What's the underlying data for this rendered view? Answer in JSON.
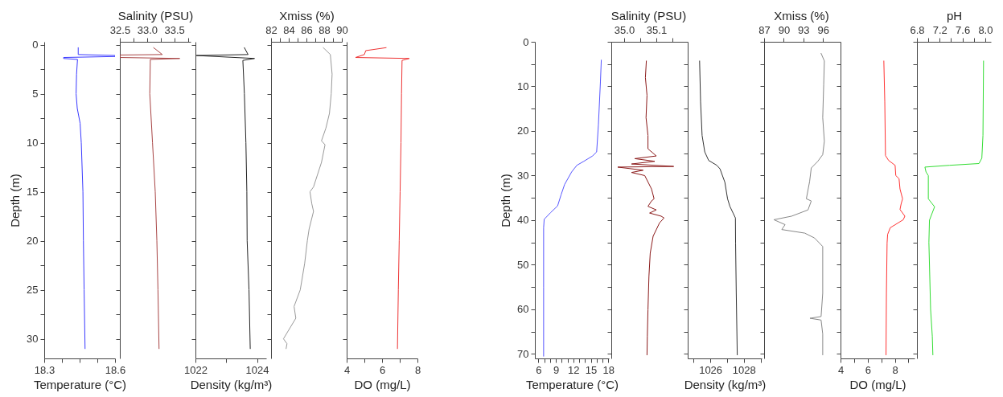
{
  "chart_data": [
    {
      "type": "line",
      "ylabel": "Depth (m)",
      "xlabel": "Temperature (°C)",
      "xlim": [
        18.3,
        18.6
      ],
      "xticks": [
        18.3,
        {
          "value": 18.375,
          "label": null
        },
        {
          "value": 18.45,
          "label": null
        },
        {
          "value": 18.525,
          "label": null
        },
        18.6
      ],
      "ylim": [
        32,
        -0.3
      ],
      "yticks": [
        0,
        {
          "value": 2.5,
          "label": null
        },
        5,
        {
          "value": 7.5,
          "label": null
        },
        10,
        {
          "value": 12.5,
          "label": null
        },
        15,
        {
          "value": 17.5,
          "label": null
        },
        20,
        {
          "value": 22.5,
          "label": null
        },
        25,
        {
          "value": 27.5,
          "label": null
        },
        30
      ],
      "series": [
        {
          "color": "#3a3aff",
          "x": [
            18.444,
            18.444,
            18.6,
            18.6,
            18.382,
            18.382,
            18.441,
            18.437,
            18.435,
            18.44,
            18.452,
            18.457,
            18.464,
            18.466,
            18.469,
            18.473
          ],
          "values": [
            0.3,
            1.0,
            1.1,
            1.2,
            1.3,
            1.4,
            1.5,
            3,
            5,
            6.5,
            8,
            10,
            15,
            20,
            25,
            31
          ]
        }
      ]
    },
    {
      "type": "line",
      "xlabel": "Salinity (PSU)",
      "xlim": [
        32.5,
        33.8
      ],
      "xticks": [
        32.5,
        {
          "value": 32.75,
          "label": null
        },
        {
          "value": 33,
          "label": "33.0"
        },
        {
          "value": 33.25,
          "label": null
        },
        33.5,
        {
          "value": 33.75,
          "label": null
        }
      ],
      "ylim": [
        32,
        -0.3
      ],
      "yticks": [
        0,
        {
          "value": 2.5,
          "label": null
        },
        5,
        {
          "value": 7.5,
          "label": null
        },
        10,
        {
          "value": 12.5,
          "label": null
        },
        15,
        {
          "value": 17.5,
          "label": null
        },
        20,
        {
          "value": 22.5,
          "label": null
        },
        25,
        {
          "value": 27.5,
          "label": null
        },
        30
      ],
      "tick_labels": "x",
      "series": [
        {
          "color": "#a84545",
          "x": [
            33.12,
            33.28,
            32.5,
            32.5,
            33.6,
            33.06,
            33.05,
            33.1,
            33.15,
            33.18,
            33.2,
            33.22
          ],
          "values": [
            0.3,
            1.0,
            1.05,
            1.3,
            1.4,
            1.5,
            5,
            10,
            15,
            20,
            25,
            31
          ]
        }
      ]
    },
    {
      "type": "line",
      "xlabel": "Density (kg/m³)",
      "xlim": [
        1022,
        1024.3
      ],
      "xticks": [
        1022,
        {
          "value": 1023,
          "label": null
        },
        1024
      ],
      "ylim": [
        32,
        -0.3
      ],
      "yticks": [
        0,
        {
          "value": 2.5,
          "label": null
        },
        5,
        {
          "value": 7.5,
          "label": null
        },
        10,
        {
          "value": 12.5,
          "label": null
        },
        15,
        {
          "value": 17.5,
          "label": null
        },
        20,
        {
          "value": 22.5,
          "label": null
        },
        25,
        {
          "value": 27.5,
          "label": null
        },
        30
      ],
      "tick_labels": "x",
      "series": [
        {
          "color": "#222222",
          "x": [
            1023.59,
            1023.71,
            1022.03,
            1023.92,
            1023.54,
            1023.59,
            1023.64,
            1023.67,
            1023.68,
            1023.74,
            1023.78
          ],
          "values": [
            0.3,
            1.0,
            1.1,
            1.4,
            1.6,
            5,
            10,
            15,
            20,
            25,
            31
          ]
        }
      ]
    },
    {
      "type": "line",
      "xlabel": "Xmiss (%)",
      "xlim": [
        82,
        90
      ],
      "xticks": [
        82,
        {
          "value": 83,
          "label": null
        },
        84,
        {
          "value": 85,
          "label": null
        },
        86,
        {
          "value": 87,
          "label": null
        },
        88,
        {
          "value": 89,
          "label": null
        },
        90
      ],
      "ylim": [
        32,
        -0.3
      ],
      "yticks": [
        0,
        {
          "value": 2.5,
          "label": null
        },
        5,
        {
          "value": 7.5,
          "label": null
        },
        10,
        {
          "value": 12.5,
          "label": null
        },
        15,
        {
          "value": 17.5,
          "label": null
        },
        20,
        {
          "value": 22.5,
          "label": null
        },
        25,
        {
          "value": 27.5,
          "label": null
        },
        30
      ],
      "tick_labels": "x",
      "series": [
        {
          "color": "#999999",
          "x": [
            87.9,
            88.7,
            88.9,
            88.8,
            88.6,
            88.2,
            87.7,
            88.1,
            87.7,
            86.8,
            86.4,
            86.6,
            86.8,
            86.3,
            86.1,
            85.8,
            85.3,
            84.6,
            84.8,
            84.2,
            83.4,
            83.8,
            83.7
          ],
          "values": [
            0.3,
            1,
            3,
            5,
            7,
            8.5,
            9.8,
            10.2,
            12,
            14.5,
            15,
            16.2,
            17,
            18.8,
            20,
            22.3,
            25,
            26.7,
            27.9,
            28.8,
            30,
            30.5,
            31
          ]
        }
      ]
    },
    {
      "type": "line",
      "xlabel": "DO (mg/L)",
      "xlim": [
        4,
        8
      ],
      "xticks": [
        4,
        {
          "value": 5,
          "label": null
        },
        6,
        {
          "value": 7,
          "label": null
        },
        8
      ],
      "ylim": [
        32,
        -0.3
      ],
      "yticks": [
        0,
        {
          "value": 2.5,
          "label": null
        },
        5,
        {
          "value": 7.5,
          "label": null
        },
        10,
        {
          "value": 12.5,
          "label": null
        },
        15,
        {
          "value": 17.5,
          "label": null
        },
        20,
        {
          "value": 22.5,
          "label": null
        },
        25,
        {
          "value": 27.5,
          "label": null
        },
        30
      ],
      "tick_labels": "x",
      "series": [
        {
          "color": "#ee3333",
          "x": [
            6.23,
            5.08,
            5.0,
            4.5,
            7.54,
            7.13,
            7.1,
            7.07,
            7.02,
            6.97,
            6.92,
            6.87
          ],
          "values": [
            0.3,
            0.6,
            1.0,
            1.3,
            1.4,
            1.6,
            5,
            10,
            15,
            20,
            25,
            31
          ]
        }
      ]
    },
    {
      "type": "line",
      "ylabel": "Depth (m)",
      "xlabel": "Temperature (°C)",
      "xlim": [
        5.4,
        18.1
      ],
      "xticks": [
        6,
        {
          "value": 7,
          "label": null
        },
        {
          "value": 8,
          "label": null
        },
        9,
        {
          "value": 10,
          "label": null
        },
        {
          "value": 11,
          "label": null
        },
        12,
        {
          "value": 13,
          "label": null
        },
        {
          "value": 14,
          "label": null
        },
        15,
        {
          "value": 16,
          "label": null
        },
        {
          "value": 17,
          "label": null
        },
        18
      ],
      "ylim": [
        71,
        0
      ],
      "yticks": [
        0,
        {
          "value": 5,
          "label": null
        },
        10,
        {
          "value": 15,
          "label": null
        },
        20,
        {
          "value": 25,
          "label": null
        },
        30,
        {
          "value": 35,
          "label": null
        },
        40,
        {
          "value": 45,
          "label": null
        },
        50,
        {
          "value": 55,
          "label": null
        },
        60,
        {
          "value": 65,
          "label": null
        },
        70
      ],
      "series": [
        {
          "color": "#5555ff",
          "x": [
            16.8,
            16.65,
            16.3,
            16.0,
            15.3,
            13.8,
            12.6,
            11.7,
            10.5,
            9.9,
            9.3,
            8.1,
            7.0,
            6.9,
            6.9,
            6.9
          ],
          "values": [
            4.1,
            9,
            18.7,
            24.7,
            25.6,
            26.8,
            27.7,
            29.2,
            32,
            34.3,
            36.8,
            38.3,
            39.8,
            41.7,
            55,
            70.5
          ]
        }
      ]
    },
    {
      "type": "line",
      "xlabel": "Salinity (PSU)",
      "xlim": [
        34.96,
        35.19
      ],
      "xticks": [
        {
          "value": 35,
          "label": "35.0"
        },
        {
          "value": 35.05,
          "label": null
        },
        35.1,
        {
          "value": 35.15,
          "label": null
        }
      ],
      "ylim": [
        71,
        0
      ],
      "yticks": [
        0,
        {
          "value": 5,
          "label": null
        },
        10,
        {
          "value": 15,
          "label": null
        },
        20,
        {
          "value": 25,
          "label": null
        },
        30,
        {
          "value": 35,
          "label": null
        },
        40,
        {
          "value": 45,
          "label": null
        },
        50,
        {
          "value": 55,
          "label": null
        },
        60,
        {
          "value": 65,
          "label": null
        },
        70
      ],
      "tick_labels": "x",
      "series": [
        {
          "color": "#8b1a1a",
          "x": [
            35.069,
            35.066,
            35.071,
            35.068,
            35.074,
            35.074,
            35.1,
            35.033,
            35.095,
            35.023,
            35.154,
            34.98,
            35.059,
            35.023,
            35.064,
            35.085,
            35.093,
            35.085,
            35.074,
            35.1,
            35.079,
            35.115,
            35.124,
            35.11,
            35.09,
            35.081,
            35.077,
            35.074,
            35.072,
            35.071
          ],
          "values": [
            4.3,
            8,
            12,
            17,
            21,
            24,
            25.6,
            26.2,
            26.8,
            27.4,
            27.95,
            28.1,
            28.8,
            29.3,
            30,
            33,
            35.2,
            35.7,
            36.9,
            37.7,
            38.4,
            39.1,
            39.5,
            40.6,
            43.6,
            47.4,
            52.6,
            60.1,
            66.1,
            70.2
          ]
        }
      ]
    },
    {
      "type": "line",
      "xlabel": "Density (kg/m³)",
      "xlim": [
        1024.65,
        1029.07
      ],
      "xticks": [
        {
          "value": 1025,
          "label": null
        },
        1026,
        {
          "value": 1027,
          "label": null
        },
        1028,
        {
          "value": 1029,
          "label": null
        }
      ],
      "ylim": [
        71,
        0
      ],
      "yticks": [
        0,
        {
          "value": 5,
          "label": null
        },
        10,
        {
          "value": 15,
          "label": null
        },
        20,
        {
          "value": 25,
          "label": null
        },
        30,
        {
          "value": 35,
          "label": null
        },
        40,
        {
          "value": 45,
          "label": null
        },
        50,
        {
          "value": 55,
          "label": null
        },
        60,
        {
          "value": 65,
          "label": null
        },
        70
      ],
      "tick_labels": "x",
      "series": [
        {
          "color": "#333333",
          "x": [
            1025.36,
            1025.42,
            1025.51,
            1025.67,
            1025.9,
            1026.39,
            1026.58,
            1026.87,
            1027.03,
            1027.17,
            1027.36,
            1027.5,
            1027.51,
            1027.55,
            1027.61
          ],
          "values": [
            4.3,
            13.5,
            21,
            24.7,
            26.6,
            27.7,
            28.5,
            31.5,
            35.2,
            36.9,
            38.4,
            39.5,
            45.1,
            56.4,
            70.2
          ]
        }
      ]
    },
    {
      "type": "line",
      "xlabel": "Xmiss (%)",
      "xlim": [
        87,
        98.3
      ],
      "xticks": [
        87,
        90,
        93,
        96
      ],
      "ylim": [
        71,
        0
      ],
      "yticks": [
        0,
        {
          "value": 5,
          "label": null
        },
        10,
        {
          "value": 15,
          "label": null
        },
        20,
        {
          "value": 25,
          "label": null
        },
        30,
        {
          "value": 35,
          "label": null
        },
        40,
        {
          "value": 45,
          "label": null
        },
        50,
        {
          "value": 55,
          "label": null
        },
        60,
        {
          "value": 65,
          "label": null
        },
        70
      ],
      "tick_labels": "x",
      "series": [
        {
          "color": "#888888",
          "x": [
            95.7,
            96.2,
            96.1,
            95.95,
            96.2,
            95.95,
            95.2,
            94.2,
            93.95,
            93.45,
            94.2,
            93.7,
            91.2,
            88.5,
            90.2,
            89.7,
            93.2,
            94.7,
            95.95,
            95.95,
            95.7,
            94.0,
            95.7,
            95.95,
            95.95
          ],
          "values": [
            2.6,
            4.3,
            9.6,
            17,
            22.3,
            25.3,
            26.8,
            28.3,
            31.3,
            35.2,
            35.7,
            37.7,
            39.1,
            39.9,
            41,
            42.1,
            42.9,
            44,
            45.9,
            56.4,
            61.6,
            62,
            62.4,
            65.5,
            70.2
          ]
        }
      ]
    },
    {
      "type": "line",
      "xlabel": "DO (mg/L)",
      "xlim": [
        4,
        9.45
      ],
      "xticks": [
        4,
        {
          "value": 5,
          "label": null
        },
        6,
        {
          "value": 7,
          "label": null
        },
        8,
        {
          "value": 9,
          "label": null
        }
      ],
      "ylim": [
        71,
        0
      ],
      "yticks": [
        0,
        {
          "value": 5,
          "label": null
        },
        10,
        {
          "value": 15,
          "label": null
        },
        20,
        {
          "value": 25,
          "label": null
        },
        30,
        {
          "value": 35,
          "label": null
        },
        40,
        {
          "value": 45,
          "label": null
        },
        50,
        {
          "value": 55,
          "label": null
        },
        60,
        {
          "value": 65,
          "label": null
        },
        70
      ],
      "tick_labels": "x",
      "series": [
        {
          "color": "#ff3333",
          "x": [
            7.19,
            7.26,
            7.31,
            7.54,
            8.02,
            8.07,
            8.31,
            8.38,
            8.57,
            8.46,
            8.38,
            8.74,
            8.62,
            7.66,
            7.47,
            7.43,
            7.38,
            7.35
          ],
          "values": [
            4.3,
            13.5,
            25.5,
            26.6,
            27.7,
            30,
            30.7,
            33,
            35.2,
            36.4,
            37.6,
            39.1,
            39.9,
            41.7,
            43.2,
            45.1,
            56.4,
            70.2
          ]
        }
      ]
    },
    {
      "type": "line",
      "xlabel": "pH",
      "xlim": [
        6.8,
        8.1
      ],
      "xticks": [
        6.8,
        {
          "value": 7,
          "label": null
        },
        7.2,
        {
          "value": 7.4,
          "label": null
        },
        7.6,
        {
          "value": 7.8,
          "label": null
        },
        {
          "value": 8,
          "label": "8.0"
        }
      ],
      "ylim": [
        71,
        0
      ],
      "yticks": [
        0,
        {
          "value": 5,
          "label": null
        },
        10,
        {
          "value": 15,
          "label": null
        },
        20,
        {
          "value": 25,
          "label": null
        },
        30,
        {
          "value": 35,
          "label": null
        },
        40,
        {
          "value": 45,
          "label": null
        },
        50,
        {
          "value": 55,
          "label": null
        },
        60,
        {
          "value": 65,
          "label": null
        },
        70
      ],
      "tick_labels": "x",
      "series": [
        {
          "color": "#33dd33",
          "x": [
            7.97,
            7.96,
            7.94,
            7.89,
            7.37,
            6.94,
            6.96,
            7.0,
            7.0,
            7.11,
            7.02,
            7.01,
            7.04,
            7.07,
            7.08
          ],
          "values": [
            4.3,
            21,
            26.1,
            27.3,
            27.7,
            28.1,
            29.2,
            30,
            35.2,
            37,
            40,
            45,
            60,
            66,
            70.2
          ]
        }
      ]
    }
  ]
}
